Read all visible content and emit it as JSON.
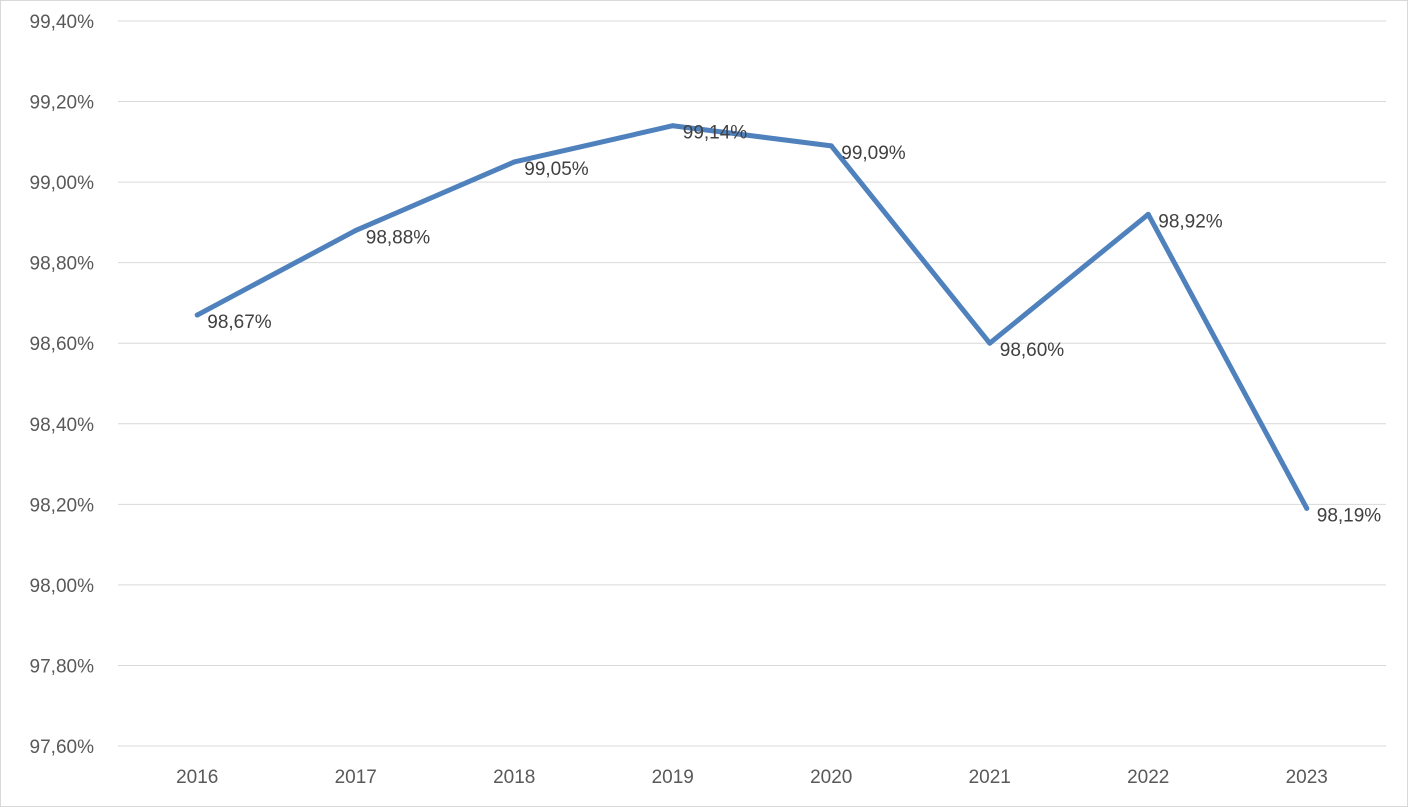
{
  "chart_data": {
    "type": "line",
    "categories": [
      "2016",
      "2017",
      "2018",
      "2019",
      "2020",
      "2021",
      "2022",
      "2023"
    ],
    "series": [
      {
        "values": [
          98.67,
          98.88,
          99.05,
          99.14,
          99.09,
          98.6,
          98.92,
          98.19
        ],
        "labels": [
          "98,67%",
          "98,88%",
          "99,05%",
          "99,14%",
          "99,09%",
          "98,60%",
          "98,92%",
          "98,19%"
        ],
        "color": "#4f81bd"
      }
    ],
    "ylim": [
      97.6,
      99.4
    ],
    "yticks": [
      97.6,
      97.8,
      98.0,
      98.2,
      98.4,
      98.6,
      98.8,
      99.0,
      99.2,
      99.4
    ],
    "ytick_labels": [
      "97,60%",
      "97,80%",
      "98,00%",
      "98,20%",
      "98,40%",
      "98,60%",
      "98,80%",
      "99,00%",
      "99,20%",
      "99,40%"
    ],
    "grid": true,
    "legend": "none",
    "title": "",
    "xlabel": "",
    "ylabel": ""
  }
}
